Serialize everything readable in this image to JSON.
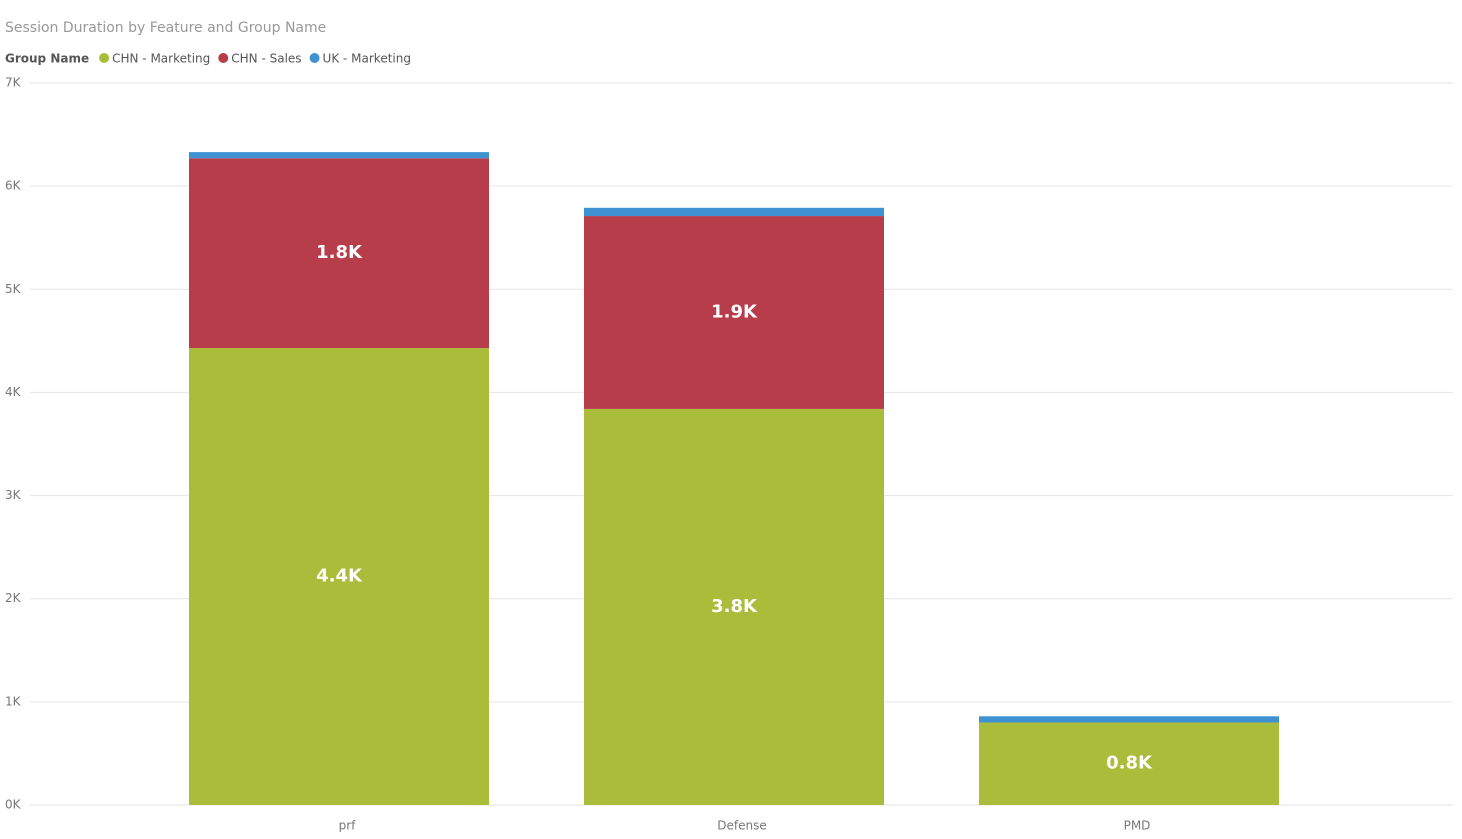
{
  "chart_data": {
    "type": "stacked_bar",
    "title": "Session Duration by Feature and Group Name",
    "legend_title": "Group Name",
    "categories": [
      "prf",
      "Defense",
      "PMD"
    ],
    "series": [
      {
        "name": "CHN - Marketing",
        "color": "#a9bd3a",
        "values": [
          4430,
          3840,
          800
        ],
        "value_labels": [
          "4.4K",
          "3.8K",
          "0.8K"
        ]
      },
      {
        "name": "CHN - Sales",
        "color": "#b83d4b",
        "values": [
          1840,
          1870,
          null
        ],
        "value_labels": [
          "1.8K",
          "1.9K",
          null
        ]
      },
      {
        "name": "UK - Marketing",
        "color": "#3f92d2",
        "values": [
          60,
          80,
          60
        ]
      }
    ],
    "ylim": [
      0,
      7000
    ],
    "yticks": [
      {
        "value": 0,
        "label": "0K"
      },
      {
        "value": 1000,
        "label": "1K"
      },
      {
        "value": 2000,
        "label": "2K"
      },
      {
        "value": 3000,
        "label": "3K"
      },
      {
        "value": 4000,
        "label": "4K"
      },
      {
        "value": 5000,
        "label": "5K"
      },
      {
        "value": 6000,
        "label": "6K"
      },
      {
        "value": 7000,
        "label": "7K"
      }
    ],
    "grid": true
  }
}
